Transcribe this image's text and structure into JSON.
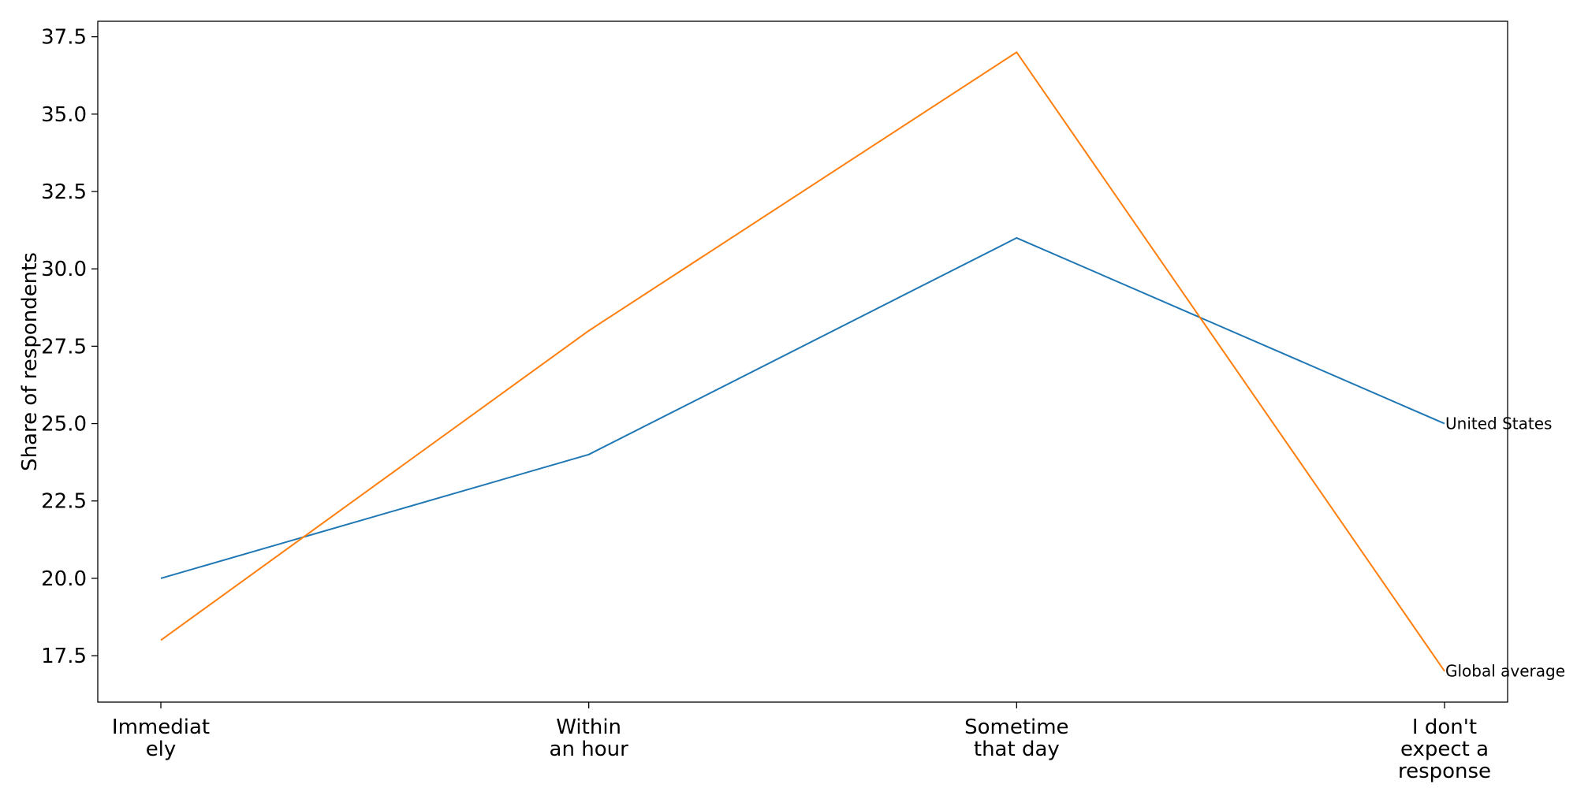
{
  "chart_data": {
    "type": "line",
    "categories": [
      [
        "Immediat",
        "ely"
      ],
      [
        "Within",
        "an hour"
      ],
      [
        "Sometime",
        "that day"
      ],
      [
        "I don't",
        "expect a",
        "response"
      ]
    ],
    "series": [
      {
        "name": "United States",
        "values": [
          20,
          24,
          31,
          25
        ],
        "color": "#1f77b4"
      },
      {
        "name": "Global average",
        "values": [
          18,
          28,
          37,
          17
        ],
        "color": "#ff7f0e"
      }
    ],
    "title": "",
    "xlabel": "",
    "ylabel": "Share of respondents",
    "ylim": [
      16,
      38
    ],
    "yticks": [
      "17.5",
      "20.0",
      "22.5",
      "25.0",
      "27.5",
      "30.0",
      "32.5",
      "35.0",
      "37.5"
    ],
    "grid": false,
    "legend": "none"
  }
}
